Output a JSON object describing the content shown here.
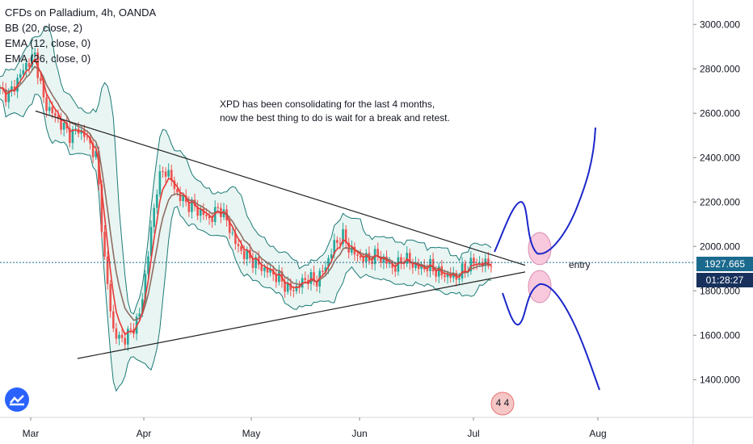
{
  "header": {
    "title": "CFDs on Palladium, 4h, OANDA",
    "indicators": [
      "BB (20, close, 2)",
      "EMA (12, close, 0)",
      "EMA (26, close, 0)"
    ]
  },
  "annotation": {
    "line1": "XPD has been consolidating for the last 4 months,",
    "line2": "now the best thing to do is wait for a break and retest.",
    "entry_label": "entry"
  },
  "current_price": "1927.665",
  "countdown": "01:28:27",
  "event_badge": "4 4",
  "colors": {
    "candle_up": "#26a69a",
    "candle_down": "#ef5350",
    "bb_fill": "#e3f2ef",
    "bb_line": "#1b7a76",
    "ema_fast": "#e53935",
    "ema_slow": "#8d6e63",
    "trendline": "#222222",
    "projection": "#1a27c9",
    "circle_fill": "#f8c8dc",
    "price_tag": "#1b6a8e",
    "countdown_tag": "#17315c"
  },
  "chart_data": {
    "type": "candlestick",
    "x_ticks": [
      "Mar",
      "Apr",
      "May",
      "Jun",
      "Jul",
      "Aug"
    ],
    "y_ticks": [
      3000,
      2800,
      2600,
      2400,
      2200,
      2000,
      1800,
      1600,
      1400
    ],
    "y_tick_labels": [
      "3000.000",
      "2800.000",
      "2600.000",
      "2400.000",
      "2200.000",
      "2000.000",
      "1800.000",
      "1600.000",
      "1400.000"
    ],
    "ylim": [
      1230,
      3110
    ],
    "close_path": [
      2700,
      2680,
      2750,
      2820,
      2860,
      2650,
      2600,
      2550,
      2500,
      2530,
      2480,
      2400,
      1900,
      1600,
      1580,
      1620,
      1700,
      2000,
      2300,
      2350,
      2250,
      2200,
      2180,
      2150,
      2120,
      2180,
      2100,
      2000,
      1960,
      1930,
      1900,
      1880,
      1850,
      1800,
      1820,
      1860,
      1840,
      1900,
      2000,
      2050,
      1980,
      1950,
      1940,
      1960,
      1930,
      1900,
      1950,
      1920,
      1900,
      1910,
      1880,
      1870,
      1860,
      1900,
      1930,
      1920,
      1927.665
    ],
    "triangle_upper": [
      [
        2610,
        "Mar"
      ],
      [
        1915,
        "Jul+0.5"
      ]
    ],
    "triangle_lower": [
      [
        1495,
        "Mar+0.4"
      ],
      [
        1885,
        "Jul+0.5"
      ]
    ],
    "current_price": 1927.665
  }
}
